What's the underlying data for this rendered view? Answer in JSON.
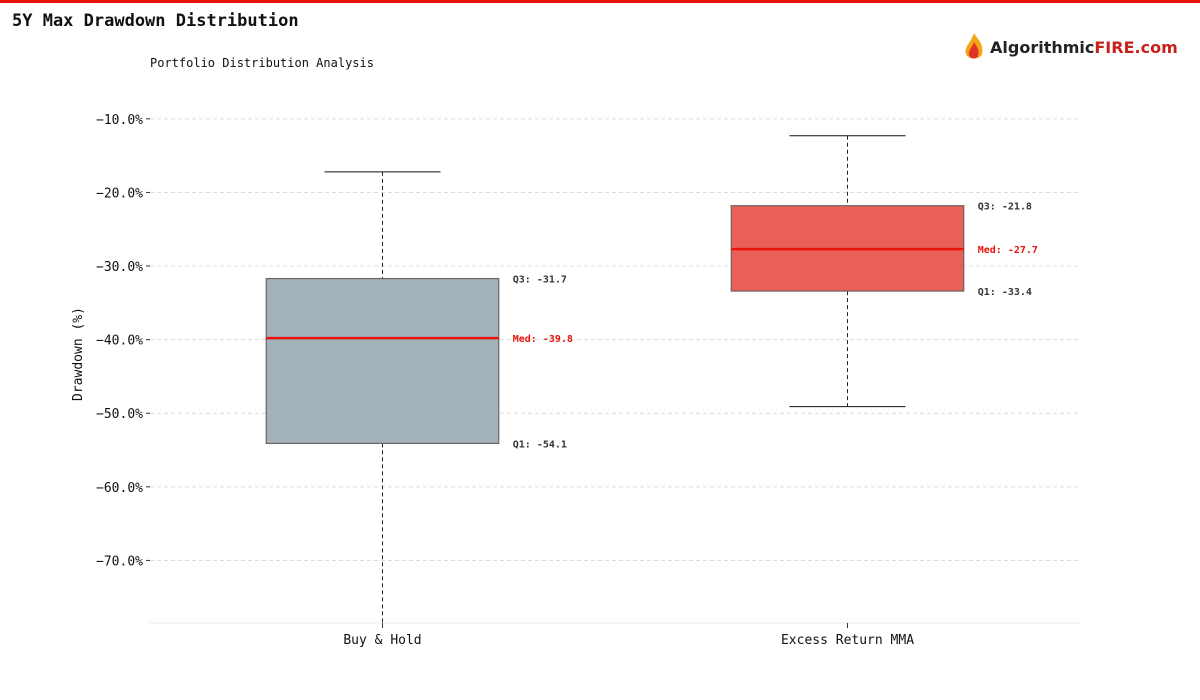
{
  "header": {
    "title": "5Y Max Drawdown Distribution",
    "logo_part1": "Algorithmic",
    "logo_part2": "FIRE.com"
  },
  "chart_data": {
    "type": "box",
    "title": "5Y Max Drawdown Distribution",
    "subtitle": "Portfolio Distribution Analysis",
    "ylabel": "Drawdown (%)",
    "xlabel": "",
    "ylim": [
      -78.5,
      -5.4
    ],
    "yticks": [
      -10,
      -20,
      -30,
      -40,
      -50,
      -60,
      -70
    ],
    "ytick_labels": [
      "−10.0%",
      "−20.0%",
      "−30.0%",
      "−40.0%",
      "−50.0%",
      "−60.0%",
      "−70.0%"
    ],
    "grid": true,
    "categories": [
      "Buy & Hold",
      "Excess Return MMA"
    ],
    "series": [
      {
        "name": "Buy & Hold",
        "whisker_high": -17.2,
        "q3": -31.7,
        "median": -39.8,
        "q1": -54.1,
        "whisker_low": -80.0,
        "color": "#a3b1b9",
        "labels": {
          "q3": "Q3: -31.7",
          "median": "Med: -39.8",
          "q1": "Q1: -54.1"
        }
      },
      {
        "name": "Excess Return MMA",
        "whisker_high": -12.3,
        "q3": -21.8,
        "median": -27.7,
        "q1": -33.4,
        "whisker_low": -49.1,
        "color": "#ea5f58",
        "labels": {
          "q3": "Q3: -21.8",
          "median": "Med: -27.7",
          "q1": "Q1: -33.4"
        }
      }
    ],
    "median_color": "#e8140c"
  }
}
